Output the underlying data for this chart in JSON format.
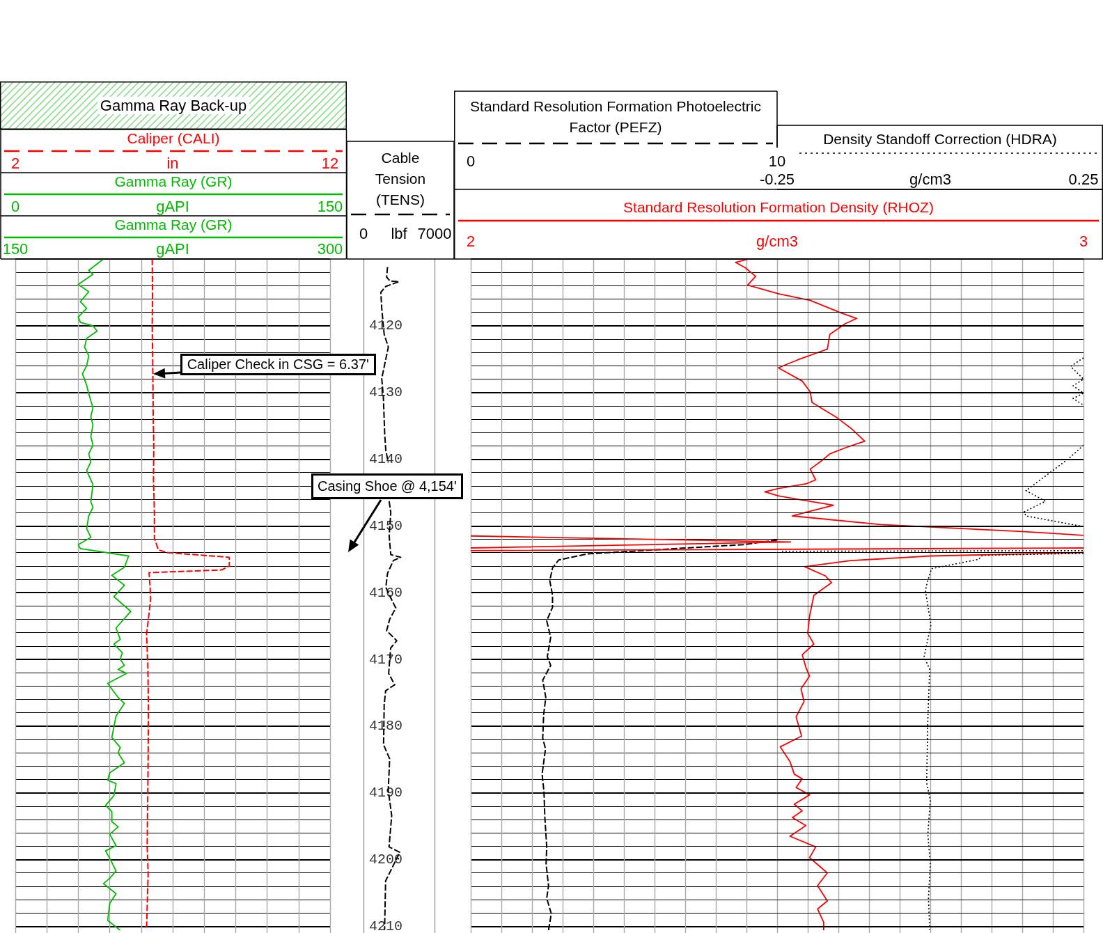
{
  "chart_data": [
    {
      "type": "line",
      "legend": "top",
      "grid": true,
      "marker": "none",
      "tick_labels": "x",
      "xlim": [
        0,
        150
      ],
      "xticks": [
        0,
        {
          "value": 15,
          "label": null
        },
        {
          "value": 30,
          "label": null
        },
        {
          "value": 45,
          "label": null
        },
        {
          "value": 60,
          "label": null
        },
        {
          "value": 75,
          "label": null
        },
        {
          "value": 90,
          "label": null
        },
        {
          "value": 105,
          "label": null
        },
        {
          "value": 120,
          "label": null
        },
        {
          "value": 135,
          "label": null
        },
        150
      ],
      "xlabel": "gAPI",
      "x2lim": [
        2,
        12
      ],
      "x2ticks": [
        2,
        12
      ],
      "x2label": "in",
      "ylim": [
        4211,
        4110
      ],
      "yticks": [
        4110,
        {
          "value": 4112,
          "label": null
        },
        {
          "value": 4114,
          "label": null
        },
        {
          "value": 4116,
          "label": null
        },
        {
          "value": 4118,
          "label": null
        },
        4120,
        {
          "value": 4122,
          "label": null
        },
        {
          "value": 4124,
          "label": null
        },
        {
          "value": 4126,
          "label": null
        },
        {
          "value": 4128,
          "label": null
        },
        4130,
        {
          "value": 4132,
          "label": null
        },
        {
          "value": 4134,
          "label": null
        },
        {
          "value": 4136,
          "label": null
        },
        {
          "value": 4138,
          "label": null
        },
        4140,
        {
          "value": 4142,
          "label": null
        },
        {
          "value": 4144,
          "label": null
        },
        {
          "value": 4146,
          "label": null
        },
        {
          "value": 4148,
          "label": null
        },
        4150,
        {
          "value": 4152,
          "label": null
        },
        {
          "value": 4154,
          "label": null
        },
        {
          "value": 4156,
          "label": null
        },
        {
          "value": 4158,
          "label": null
        },
        4160,
        {
          "value": 4162,
          "label": null
        },
        {
          "value": 4164,
          "label": null
        },
        {
          "value": 4166,
          "label": null
        },
        {
          "value": 4168,
          "label": null
        },
        4170,
        {
          "value": 4172,
          "label": null
        },
        {
          "value": 4174,
          "label": null
        },
        {
          "value": 4176,
          "label": null
        },
        {
          "value": 4178,
          "label": null
        },
        4180,
        {
          "value": 4182,
          "label": null
        },
        {
          "value": 4184,
          "label": null
        },
        {
          "value": 4186,
          "label": null
        },
        {
          "value": 4188,
          "label": null
        },
        4190,
        {
          "value": 4192,
          "label": null
        },
        {
          "value": 4194,
          "label": null
        },
        {
          "value": 4196,
          "label": null
        },
        {
          "value": 4198,
          "label": null
        },
        4200,
        {
          "value": 4202,
          "label": null
        },
        {
          "value": 4204,
          "label": null
        },
        {
          "value": 4206,
          "label": null
        },
        {
          "value": 4208,
          "label": null
        },
        4210
      ],
      "annotations": [
        "Gamma Ray Back-up",
        "Gamma Ray (GR)",
        "150",
        "gAPI",
        "300",
        {
          "text": "Caliper Check in CSG = 6.37'",
          "x": 65.6,
          "y": 4127.2
        }
      ],
      "series": [
        {
          "name": "Caliper (CALI)",
          "color": "#ff0000",
          "line_style": "dashed",
          "axis": "x2",
          "x": [
            6.35,
            6.36,
            6.35,
            6.37,
            6.38,
            6.4,
            6.39,
            6.42,
            6.42,
            6.55,
            6.85,
            8.8,
            8.8,
            8.55,
            6.25,
            6.28,
            6.3,
            6.24,
            6.17,
            6.21,
            6.23,
            6.22,
            6.19,
            6.22,
            6.17
          ],
          "values": [
            4110,
            4115,
            4120,
            4127.2,
            4133,
            4138,
            4143,
            4148,
            4151.9,
            4153.6,
            4154,
            4154.7,
            4156,
            4156.6,
            4157,
            4159,
            4161,
            4163.5,
            4166.2,
            4170.9,
            4176.8,
            4185,
            4198,
            4202,
            4210.5
          ]
        },
        {
          "name": "Gamma Ray (GR)",
          "color": "#00bb00",
          "line_style": "solid",
          "x": [
            42,
            35,
            37,
            30,
            35,
            31,
            34,
            30,
            31,
            37,
            39,
            34,
            33,
            35,
            34,
            32,
            34,
            35,
            37,
            36,
            37,
            36,
            37,
            35,
            36,
            34,
            37,
            36,
            37,
            35,
            34,
            36,
            30,
            31,
            54,
            52,
            46,
            52,
            47,
            55,
            48,
            50,
            47,
            51,
            50,
            52,
            49,
            53,
            44,
            49,
            52,
            48,
            46,
            50,
            49,
            52,
            45,
            44,
            48,
            47,
            43,
            46,
            46,
            49,
            45,
            48,
            43,
            45,
            48,
            45,
            42,
            48,
            45,
            44,
            50
          ],
          "values": [
            4110,
            4111.7,
            4112.3,
            4113.8,
            4114.9,
            4116.4,
            4117.4,
            4118.7,
            4119.5,
            4120,
            4120.8,
            4121.9,
            4123.2,
            4124.5,
            4126,
            4127.2,
            4128.9,
            4130.2,
            4132.3,
            4133.6,
            4134.9,
            4136.6,
            4137.9,
            4139.2,
            4140.4,
            4141.7,
            4143.8,
            4146.4,
            4147.2,
            4148.5,
            4150.4,
            4151.7,
            4152.8,
            4153.4,
            4154.5,
            4156.2,
            4157.4,
            4158.9,
            4160.6,
            4162.8,
            4165.3,
            4167,
            4167.7,
            4169,
            4170,
            4170.9,
            4171.5,
            4172.1,
            4173.6,
            4175.7,
            4176.6,
            4178.5,
            4181.7,
            4183.2,
            4184,
            4185.5,
            4187,
            4188.1,
            4188.6,
            4190.4,
            4191.9,
            4192.8,
            4194.3,
            4195.1,
            4196.2,
            4197.9,
            4198.7,
            4199.8,
            4201.7,
            4202.8,
            4203.6,
            4205.1,
            4206.6,
            4209.1,
            4210.6
          ]
        }
      ]
    },
    {
      "type": "line",
      "legend": "top",
      "marker": "none",
      "xlim": [
        0,
        7000
      ],
      "xticks": [
        0,
        7000
      ],
      "xlabel": "lbf",
      "ylim": [
        4211,
        4110
      ],
      "yticks": [
        4120,
        4130,
        4140,
        4150,
        4160,
        4170,
        4180,
        4190,
        4200,
        4210
      ],
      "annotations": [
        "Casing Shoe @ 4,154'"
      ],
      "series": [
        {
          "name": "Cable Tension (TENS)",
          "color": "#000000",
          "line_style": "dashed",
          "x": [
            2370,
            2280,
            2610,
            3510,
            2200,
            1710,
            1800,
            2040,
            2450,
            1800,
            1960,
            2090,
            2200,
            2450,
            null,
            2530,
            2690,
            2530,
            2690,
            3670,
            2940,
            2370,
            2200,
            2600,
            3180,
            2580,
            2280,
            3280,
            2680,
            2480,
            3080,
            2180,
            2040,
            1980,
            2580,
            2440,
            2780,
            2520,
            3580,
            2180,
            2080
          ],
          "values": [
            4111.2,
            4112.7,
            4113.3,
            4113.4,
            4114.1,
            4115,
            4117.4,
            4121.3,
            4123.2,
            4127.9,
            4130.7,
            4136.2,
            4138.7,
            4140.5,
            null,
            4146.3,
            4148,
            4151.5,
            4154.3,
            4154.7,
            4155.2,
            4157.1,
            4159.2,
            4160.5,
            4162.3,
            4164,
            4165.7,
            4167.2,
            4168.3,
            4172.1,
            4173.8,
            4174.7,
            4176.8,
            4182.8,
            4184.9,
            4189.6,
            4193.4,
            4198.1,
            4198.9,
            4203.2,
            4210.5
          ]
        }
      ]
    },
    {
      "type": "line",
      "legend": "top",
      "grid": true,
      "marker": "none",
      "tick_labels": "x",
      "xlim": [
        2,
        3
      ],
      "xticks": [
        2,
        {
          "value": 2.05,
          "label": null
        },
        {
          "value": 2.1,
          "label": null
        },
        {
          "value": 2.15,
          "label": null
        },
        {
          "value": 2.2,
          "label": null
        },
        {
          "value": 2.25,
          "label": null
        },
        {
          "value": 2.3,
          "label": null
        },
        {
          "value": 2.35,
          "label": null
        },
        {
          "value": 2.4,
          "label": null
        },
        {
          "value": 2.45,
          "label": null
        },
        {
          "value": 2.5,
          "label": null
        },
        {
          "value": 2.55,
          "label": null
        },
        {
          "value": 2.6,
          "label": null
        },
        {
          "value": 2.65,
          "label": null
        },
        {
          "value": 2.7,
          "label": null
        },
        {
          "value": 2.75,
          "label": null
        },
        {
          "value": 2.8,
          "label": null
        },
        {
          "value": 2.85,
          "label": null
        },
        {
          "value": 2.9,
          "label": null
        },
        {
          "value": 2.95,
          "label": null
        },
        3
      ],
      "xlabel": "g/cm3",
      "x2lim": [
        0,
        20
      ],
      "x2ticks": [
        0,
        10
      ],
      "ylim": [
        4211,
        4110
      ],
      "yticks": [
        4110,
        {
          "value": 4112,
          "label": null
        },
        {
          "value": 4114,
          "label": null
        },
        {
          "value": 4116,
          "label": null
        },
        {
          "value": 4118,
          "label": null
        },
        4120,
        {
          "value": 4122,
          "label": null
        },
        {
          "value": 4124,
          "label": null
        },
        {
          "value": 4126,
          "label": null
        },
        {
          "value": 4128,
          "label": null
        },
        4130,
        {
          "value": 4132,
          "label": null
        },
        {
          "value": 4134,
          "label": null
        },
        {
          "value": 4136,
          "label": null
        },
        {
          "value": 4138,
          "label": null
        },
        4140,
        {
          "value": 4142,
          "label": null
        },
        {
          "value": 4144,
          "label": null
        },
        {
          "value": 4146,
          "label": null
        },
        {
          "value": 4148,
          "label": null
        },
        4150,
        {
          "value": 4152,
          "label": null
        },
        {
          "value": 4154,
          "label": null
        },
        {
          "value": 4156,
          "label": null
        },
        {
          "value": 4158,
          "label": null
        },
        4160,
        {
          "value": 4162,
          "label": null
        },
        {
          "value": 4164,
          "label": null
        },
        {
          "value": 4166,
          "label": null
        },
        {
          "value": 4168,
          "label": null
        },
        4170,
        {
          "value": 4172,
          "label": null
        },
        {
          "value": 4174,
          "label": null
        },
        {
          "value": 4176,
          "label": null
        },
        {
          "value": 4178,
          "label": null
        },
        4180,
        {
          "value": 4182,
          "label": null
        },
        {
          "value": 4184,
          "label": null
        },
        {
          "value": 4186,
          "label": null
        },
        {
          "value": 4188,
          "label": null
        },
        4190,
        {
          "value": 4192,
          "label": null
        },
        {
          "value": 4194,
          "label": null
        },
        {
          "value": 4196,
          "label": null
        },
        {
          "value": 4198,
          "label": null
        },
        4200,
        {
          "value": 4202,
          "label": null
        },
        {
          "value": 4204,
          "label": null
        },
        {
          "value": 4206,
          "label": null
        },
        {
          "value": 4208,
          "label": null
        },
        4210
      ],
      "series": [
        {
          "name": "Standard Resolution Formation Photoelectric Factor (PEFZ)",
          "color": "#000000",
          "line_style": "dashed",
          "axis": "x2",
          "x": [
            10,
            8.9,
            6.3,
            3.8,
            2.87,
            2.67,
            2.58,
            2.67,
            2.67,
            2.48,
            2.61,
            2.5,
            2.61,
            2.35,
            2.45,
            2.38,
            2.35,
            2.44,
            2.33,
            2.39,
            2.42,
            2.48,
            2.46,
            2.54,
            2.48,
            2.63,
            2.54
          ],
          "values": [
            4152.1,
            4152.8,
            4153.5,
            4154.2,
            4155.1,
            4156.3,
            4158.2,
            4160.4,
            4162.2,
            4164.2,
            4166.7,
            4169.6,
            4170.9,
            4173.1,
            4175.7,
            4178.3,
            4181.8,
            4183.4,
            4187.2,
            4189.8,
            4193.7,
            4198.1,
            4200.7,
            4203.9,
            4205.8,
            4208.1,
            4210.6
          ]
        },
        {
          "name": "Standard Resolution Formation Density (RHOZ)",
          "color": "#ff0000",
          "line_style": "solid",
          "x": [
            2.454,
            2.432,
            2.448,
            2.465,
            2.452,
            2.502,
            2.554,
            2.605,
            2.63,
            2.611,
            2.586,
            2.582,
            2.534,
            2.502,
            2.541,
            2.554,
            2.557,
            2.598,
            2.621,
            2.643,
            2.611,
            2.586,
            2.573,
            2.554,
            2.563,
            2.547,
            2.502,
            2.48,
            2.502,
            2.534,
            2.592,
            2.525,
            2.669,
            2.894,
            3,
            null,
            2,
            2.522,
            2,
            null,
            2,
            3,
            null,
            3,
            2.75,
            2.62,
            2.545,
            2.579,
            2.589,
            2.56,
            2.553,
            2.55,
            2.56,
            2.541,
            2.547,
            2.553,
            2.539,
            2.544,
            2.531,
            2.54,
            2.505,
            2.521,
            2.528,
            2.541,
            2.531,
            2.553,
            2.528,
            2.541,
            2.525,
            2.547,
            2.521,
            2.563,
            2.553,
            2.582,
            2.566,
            2.582,
            2.566,
            2.576,
            2.576
          ],
          "values": [
            4110,
            4110.5,
            4111.3,
            4112.6,
            4113.9,
            4115.2,
            4116.2,
            4118.1,
            4118.9,
            4119.7,
            4121.3,
            4123.5,
            4125.1,
            4126.3,
            4128.3,
            4129.9,
            4131.5,
            4133.8,
            4135.4,
            4137.3,
            4138.3,
            4139.2,
            4140.2,
            4141.5,
            4143.1,
            4143.7,
            4144.4,
            4144.9,
            4145.5,
            4146,
            4146.9,
            4148.5,
            4149.8,
            4150.8,
            4151.4,
            null,
            4151.5,
            4152.4,
            4153.3,
            null,
            4153.7,
            4153.3,
            null,
            4154,
            4154.5,
            4155.2,
            4156.1,
            4157.5,
            4158.5,
            4160.4,
            4163.5,
            4166.1,
            4167.7,
            4169.3,
            4171.2,
            4172.5,
            4174.4,
            4176.3,
            4178.6,
            4181.5,
            4183.1,
            4185.3,
            4187.2,
            4187.9,
            4189.2,
            4190.3,
            4191.7,
            4192.7,
            4193.7,
            4194.9,
            4196.5,
            4198.1,
            4199.7,
            4202,
            4203.9,
            4206.2,
            4207.4,
            4209.4,
            4210.6
          ]
        }
      ]
    },
    {
      "type": "line",
      "legend": "top",
      "grid": "y",
      "marker": "none",
      "tick_labels": "x",
      "xlim": [
        -0.25,
        0.25
      ],
      "xticks": [
        -0.25,
        0.25
      ],
      "xlabel": "g/cm3",
      "ylim": [
        4211,
        4110
      ],
      "yticks": [
        4110,
        {
          "value": 4112,
          "label": null
        },
        {
          "value": 4114,
          "label": null
        },
        {
          "value": 4116,
          "label": null
        },
        {
          "value": 4118,
          "label": null
        },
        4120,
        {
          "value": 4122,
          "label": null
        },
        {
          "value": 4124,
          "label": null
        },
        {
          "value": 4126,
          "label": null
        },
        {
          "value": 4128,
          "label": null
        },
        4130,
        {
          "value": 4132,
          "label": null
        },
        {
          "value": 4134,
          "label": null
        },
        {
          "value": 4136,
          "label": null
        },
        {
          "value": 4138,
          "label": null
        },
        4140,
        {
          "value": 4142,
          "label": null
        },
        {
          "value": 4144,
          "label": null
        },
        {
          "value": 4146,
          "label": null
        },
        {
          "value": 4148,
          "label": null
        },
        4150,
        {
          "value": 4152,
          "label": null
        },
        {
          "value": 4154,
          "label": null
        },
        {
          "value": 4156,
          "label": null
        },
        {
          "value": 4158,
          "label": null
        },
        4160,
        {
          "value": 4162,
          "label": null
        },
        {
          "value": 4164,
          "label": null
        },
        {
          "value": 4166,
          "label": null
        },
        {
          "value": 4168,
          "label": null
        },
        4170,
        {
          "value": 4172,
          "label": null
        },
        {
          "value": 4174,
          "label": null
        },
        {
          "value": 4176,
          "label": null
        },
        {
          "value": 4178,
          "label": null
        },
        4180,
        {
          "value": 4182,
          "label": null
        },
        {
          "value": 4184,
          "label": null
        },
        {
          "value": 4186,
          "label": null
        },
        {
          "value": 4188,
          "label": null
        },
        4190,
        {
          "value": 4192,
          "label": null
        },
        {
          "value": 4194,
          "label": null
        },
        {
          "value": 4196,
          "label": null
        },
        {
          "value": 4198,
          "label": null
        },
        4200,
        {
          "value": 4202,
          "label": null
        },
        {
          "value": 4204,
          "label": null
        },
        {
          "value": 4206,
          "label": null
        },
        {
          "value": 4208,
          "label": null
        },
        4210
      ],
      "series": [
        {
          "name": "Density Standoff Correction (HDRA)",
          "color": "#000000",
          "line_style": "dotted",
          "x": [
            0.25,
            0.229,
            0.25,
            0.233,
            0.25,
            0.233,
            0.25,
            null,
            0.25,
            0.226,
            0.194,
            0.156,
            0.188,
            0.153,
            0.156,
            0.25,
            null,
            -0.242,
            0.25,
            null,
            0.25,
            0.085,
            0.079,
            0.002,
            -0.005,
            -0.008,
            0.001,
            -0.01,
            -0.001,
            -0.004,
            -0.006,
            0,
            -0.004,
            0,
            -0.003,
            -0.001
          ],
          "values": [
            4124.8,
            4126.1,
            4128,
            4129,
            4130.1,
            4130.9,
            4131.9,
            null,
            4137.9,
            4139.9,
            4142.1,
            4144.7,
            4146.3,
            4147.9,
            4148.5,
            4150.1,
            null,
            4153.8,
            4153.7,
            null,
            4154.1,
            4154.4,
            4155,
            4156.4,
            4158.5,
            4159.7,
            4164.8,
            4169.6,
            4171.5,
            4178.9,
            4188.5,
            4191.1,
            4196.2,
            4200.7,
            4205.8,
            4210.5
          ]
        }
      ]
    }
  ]
}
